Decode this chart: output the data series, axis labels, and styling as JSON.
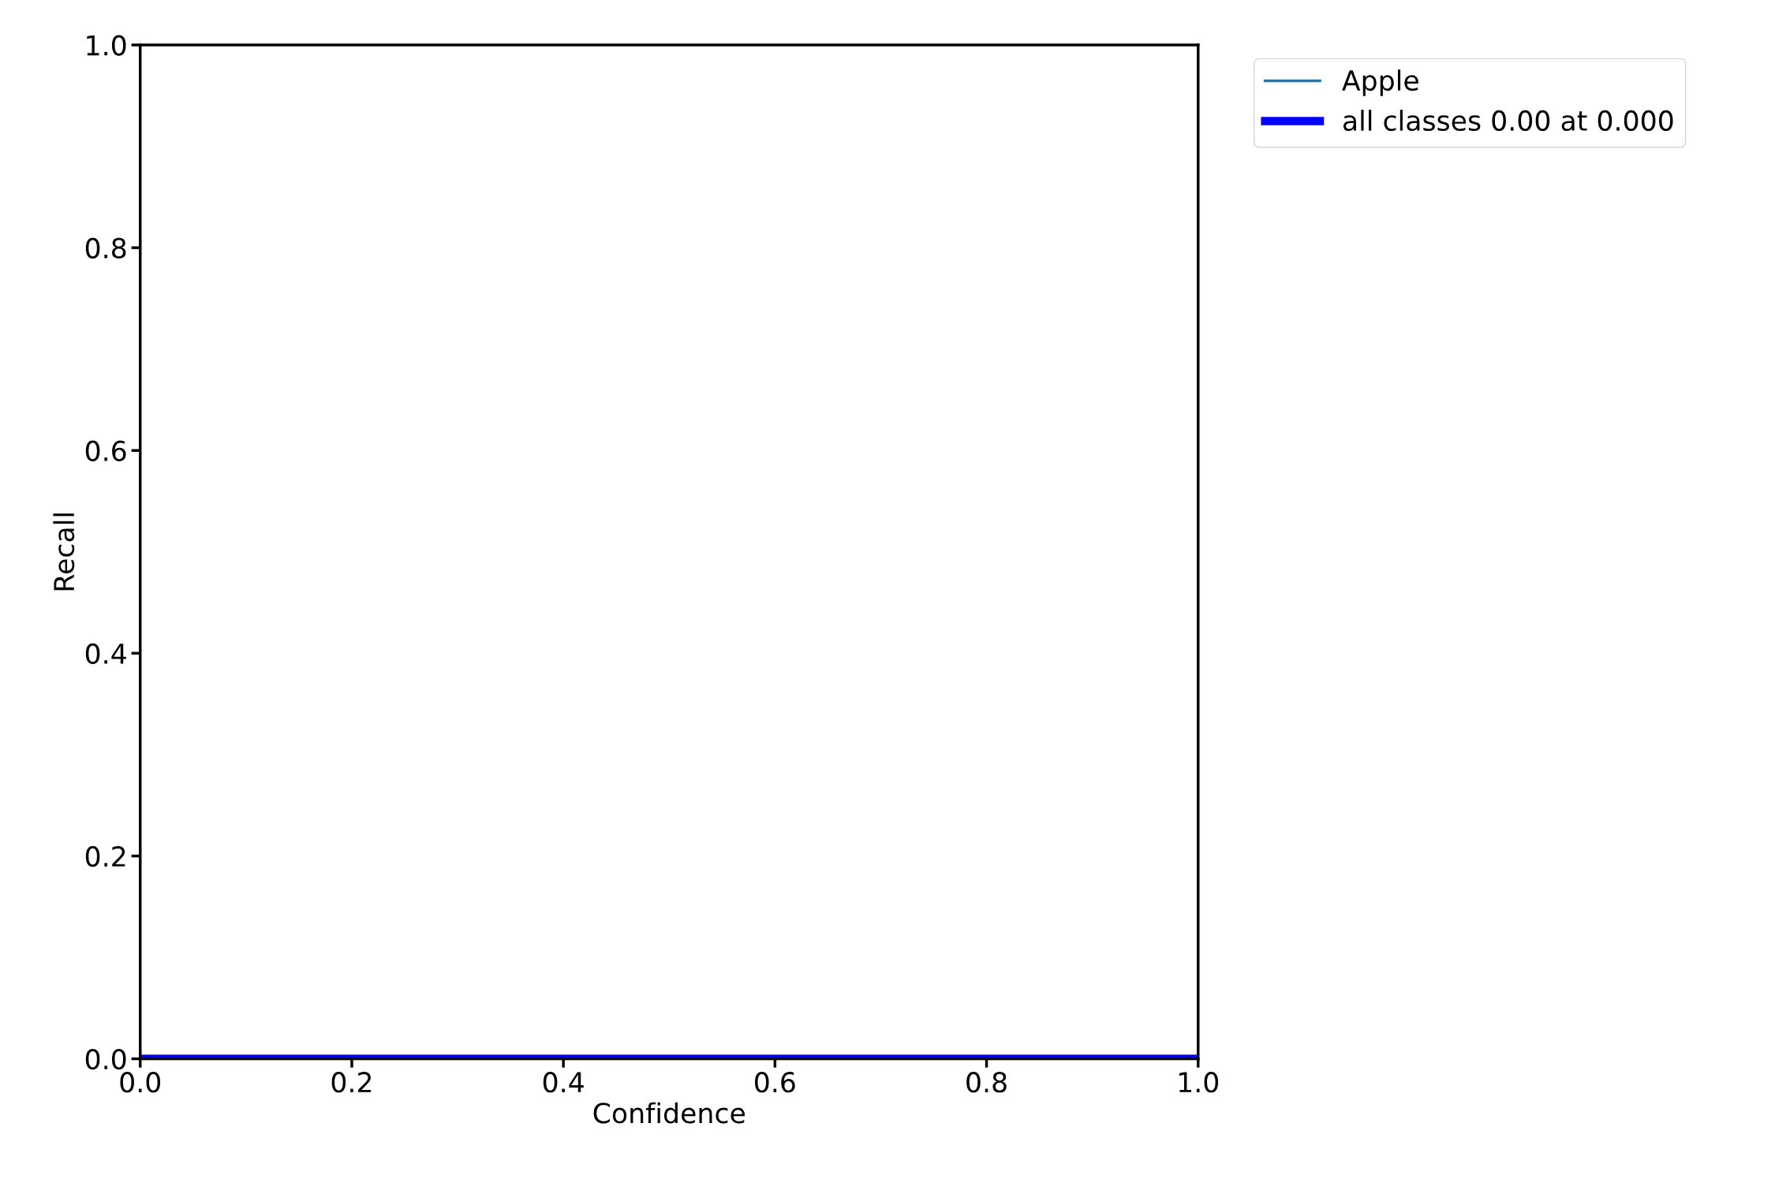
{
  "chart_data": {
    "type": "line",
    "xlabel": "Confidence",
    "ylabel": "Recall",
    "x": [
      0,
      1
    ],
    "series": [
      {
        "name": "Apple",
        "color": "#1f77b4",
        "values": [
          null,
          null
        ]
      },
      {
        "name": "all classes 0.00 at 0.000",
        "color": "#0000ff",
        "values": [
          0,
          0
        ]
      }
    ],
    "xlim": [
      0,
      1
    ],
    "ylim": [
      0,
      1
    ],
    "xticks": [
      {
        "value": 0,
        "label": "0.0"
      },
      0.2,
      0.4,
      0.6,
      0.8,
      {
        "value": 1,
        "label": "1.0"
      }
    ],
    "yticks": [
      {
        "value": 0,
        "label": "0.0"
      },
      0.2,
      0.4,
      0.6,
      0.8,
      {
        "value": 1,
        "label": "1.0"
      }
    ],
    "legend": "top right",
    "grid": false,
    "marker": "none",
    "line_style": "solid"
  }
}
